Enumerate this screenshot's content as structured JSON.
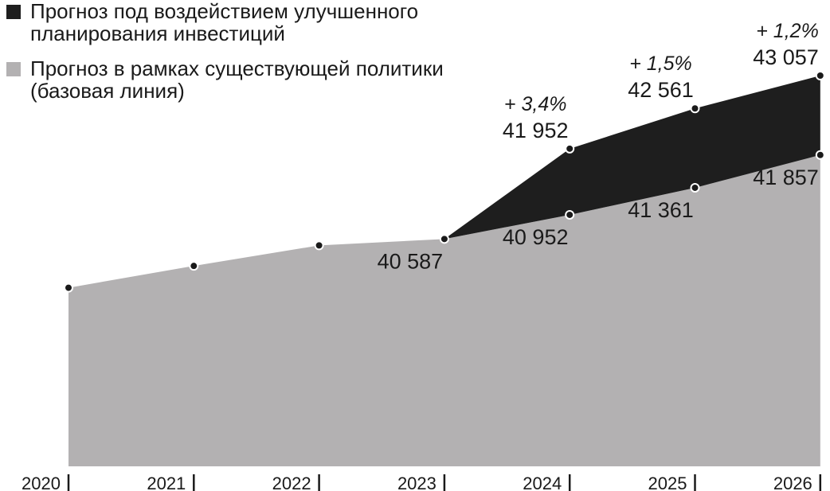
{
  "chart_data": {
    "type": "area",
    "categories": [
      "2020",
      "2021",
      "2022",
      "2023",
      "2024",
      "2025",
      "2026"
    ],
    "series": [
      {
        "name": "Прогноз в рамках существующей политики (базовая линия)",
        "color": "#b3b1b2",
        "values": [
          39850,
          40180,
          40490,
          40587,
          40952,
          41361,
          41857
        ],
        "labels": [
          "",
          "",
          "",
          "40 587",
          "40 952",
          "41 361",
          "41 857"
        ]
      },
      {
        "name": "Прогноз под воздействием улучшенного планирования инвестиций",
        "color": "#1e1e1e",
        "values": [
          null,
          null,
          null,
          40587,
          41952,
          42561,
          43057
        ],
        "labels": [
          "",
          "",
          "",
          "",
          "41 952",
          "42 561",
          "43 057"
        ],
        "growth": [
          "",
          "",
          "",
          "",
          "+ 3,4%",
          "+ 1,5%",
          "+ 1,2%"
        ]
      }
    ],
    "legend_order": [
      1,
      0
    ],
    "legend_position": "top-left",
    "grid": false,
    "ylim": [
      37150,
      44200
    ]
  }
}
